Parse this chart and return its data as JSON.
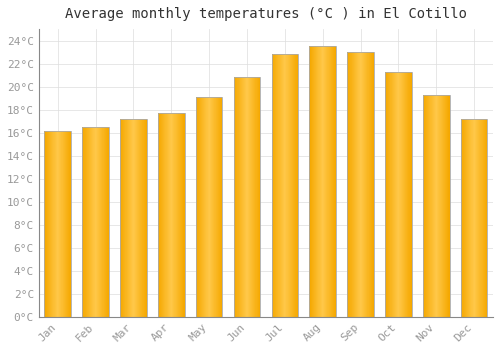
{
  "title": "Average monthly temperatures (°C ) in El Cotillo",
  "months": [
    "Jan",
    "Feb",
    "Mar",
    "Apr",
    "May",
    "Jun",
    "Jul",
    "Aug",
    "Sep",
    "Oct",
    "Nov",
    "Dec"
  ],
  "temperatures": [
    16.1,
    16.5,
    17.2,
    17.7,
    19.1,
    20.8,
    22.8,
    23.5,
    23.0,
    21.3,
    19.3,
    17.2
  ],
  "bar_color_center": "#FFC84A",
  "bar_color_edge": "#F5A800",
  "bar_border_color": "#AAAAAA",
  "background_color": "#FFFFFF",
  "grid_color": "#DDDDDD",
  "ylim": [
    0,
    25
  ],
  "ytick_step": 2,
  "title_fontsize": 10,
  "tick_fontsize": 8,
  "tick_font_color": "#999999",
  "title_color": "#333333",
  "bar_width": 0.7
}
